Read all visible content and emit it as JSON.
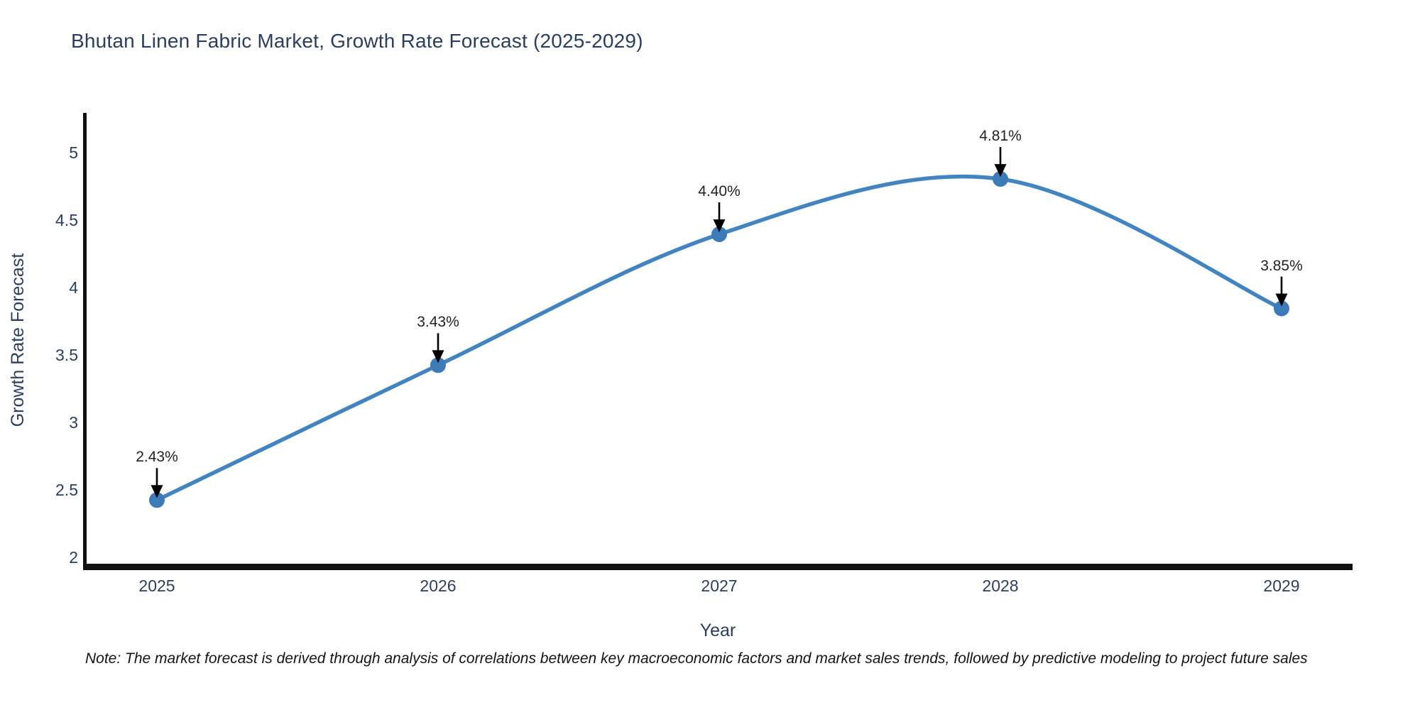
{
  "title": "Bhutan Linen Fabric Market, Growth Rate Forecast (2025-2029)",
  "note": "Note: The market forecast is derived through analysis of correlations between key macroeconomic factors and market sales trends, followed by predictive modeling to project future sales",
  "chart_data": {
    "type": "line",
    "line_shape": "spline",
    "title": "Bhutan Linen Fabric Market, Growth Rate Forecast (2025-2029)",
    "xlabel": "Year",
    "ylabel": "Growth Rate Forecast",
    "x": [
      2025,
      2026,
      2027,
      2028,
      2029
    ],
    "values": [
      2.43,
      3.43,
      4.4,
      4.81,
      3.85
    ],
    "point_labels": [
      "2.43%",
      "3.43%",
      "4.40%",
      "4.81%",
      "3.85%"
    ],
    "x_tick_labels": [
      "2025",
      "2026",
      "2027",
      "2028",
      "2029"
    ],
    "y_ticks": [
      2,
      2.5,
      3,
      3.5,
      4,
      4.5,
      5
    ],
    "y_tick_labels": [
      "2",
      "2.5",
      "3",
      "3.5",
      "4",
      "4.5",
      "5"
    ],
    "ylim": [
      1.94,
      5.3
    ],
    "grid": false,
    "legend": false,
    "annotation_style": "value label with black down-arrow pointing at marker",
    "colors": {
      "line": "#4284c0",
      "marker": "#3c7bb8",
      "axis": "#111111",
      "text": "#2a3f5f",
      "annotation": "#222222",
      "background": "#ffffff"
    }
  }
}
